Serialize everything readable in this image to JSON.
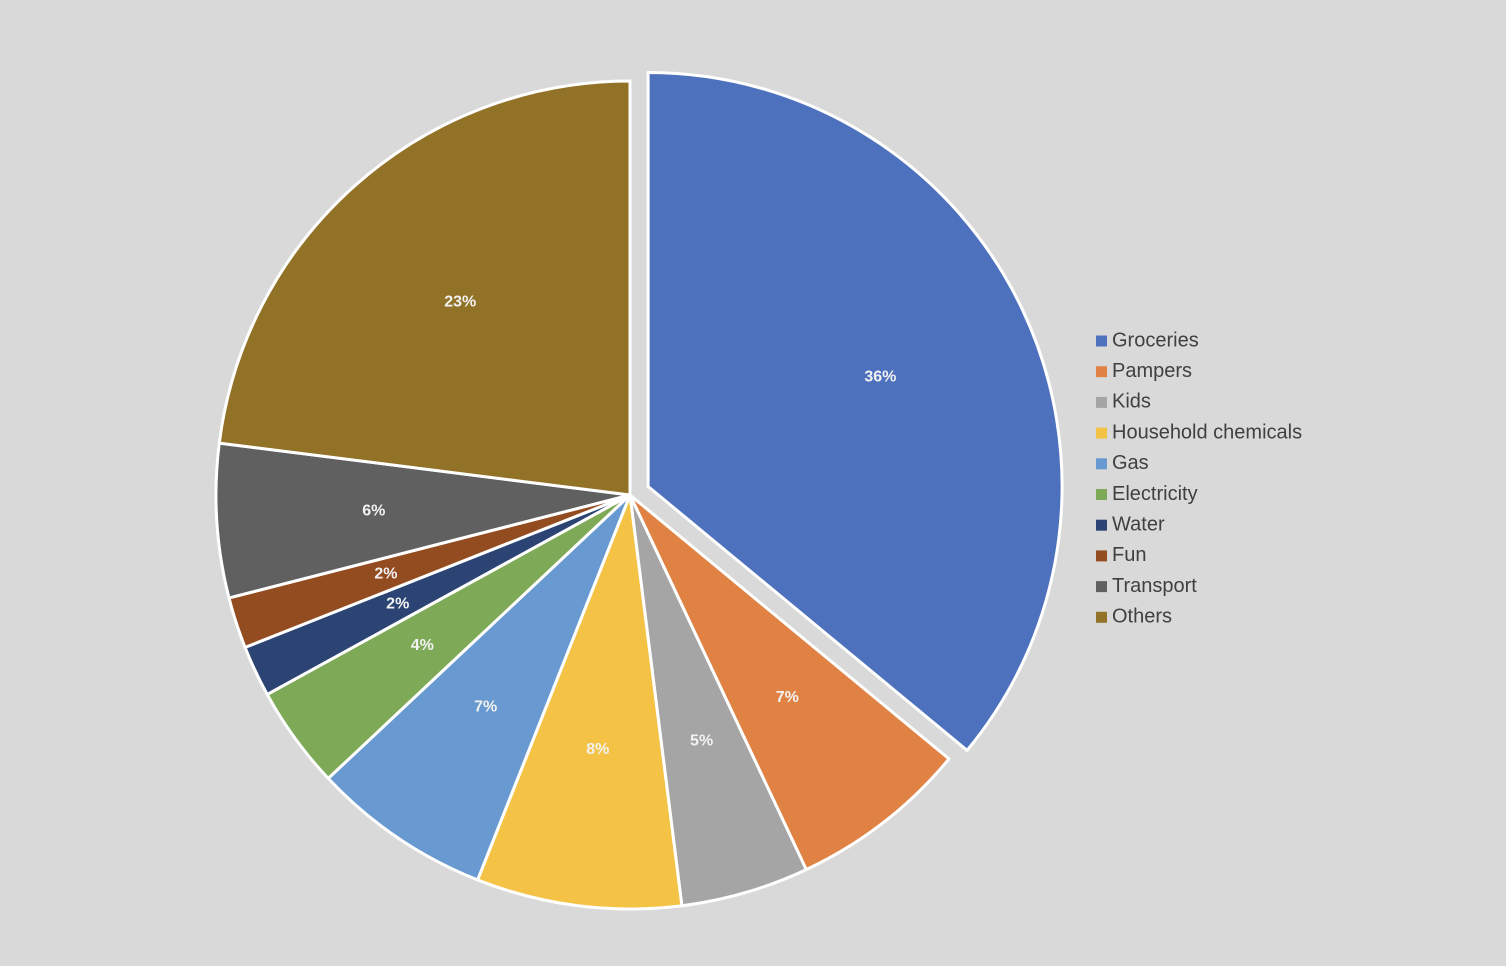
{
  "chart_data": {
    "type": "pie",
    "categories": [
      "Groceries",
      "Pampers",
      "Kids",
      "Household chemicals",
      "Gas",
      "Electricity",
      "Water",
      "Fun",
      "Transport",
      "Others"
    ],
    "values": [
      36,
      7,
      5,
      8,
      7,
      4,
      2,
      2,
      6,
      23
    ],
    "data_labels": [
      "36%",
      "7%",
      "5%",
      "8%",
      "7%",
      "4%",
      "2%",
      "2%",
      "6%",
      "23%"
    ],
    "colors": [
      "#4e71be",
      "#e08243",
      "#a5a5a5",
      "#f4c244",
      "#6899d0",
      "#7ea956",
      "#2b4474",
      "#934b20",
      "#606060",
      "#927226"
    ],
    "exploded": [
      "Groceries"
    ],
    "start_angle": "12 o'clock",
    "direction": "clockwise",
    "legend_position": "right",
    "title": ""
  }
}
